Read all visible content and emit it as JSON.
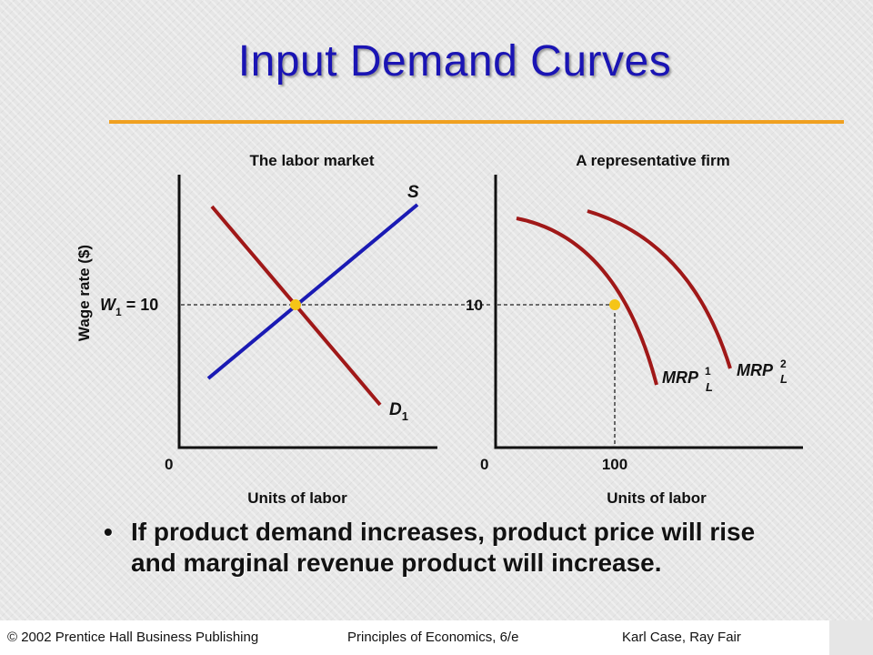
{
  "title": "Input Demand Curves",
  "colors": {
    "title": "#1a14b4",
    "rule": "#f0a020",
    "supply": "#1a1ab4",
    "demand": "#a01818",
    "equilibrium_point": "#f5c518"
  },
  "left_panel": {
    "title": "The labor market",
    "y_axis_label": "Wage rate ($)",
    "x_axis_label": "Units of labor",
    "origin_label": "0",
    "wage_label_main": "W",
    "wage_label_sub": "1",
    "wage_label_rest": " = 10",
    "supply_label": "S",
    "demand_label_main": "D",
    "demand_label_sub": "1"
  },
  "right_panel": {
    "title": "A representative firm",
    "x_axis_label": "Units of labor",
    "origin_label": "0",
    "y_tick_label": "10",
    "x_tick_label": "100",
    "curve1_label_main": "MRP",
    "curve1_label_sup": "1",
    "curve1_label_sub": "L",
    "curve2_label_main": "MRP",
    "curve2_label_sup": "2",
    "curve2_label_sub": "L"
  },
  "bullet": {
    "marker": "•",
    "text": "If product demand increases, product price will rise and marginal revenue product will increase."
  },
  "footer": {
    "copyright": "© 2002 Prentice Hall Business Publishing",
    "book": "Principles of Economics, 6/e",
    "authors": "Karl Case, Ray Fair"
  }
}
